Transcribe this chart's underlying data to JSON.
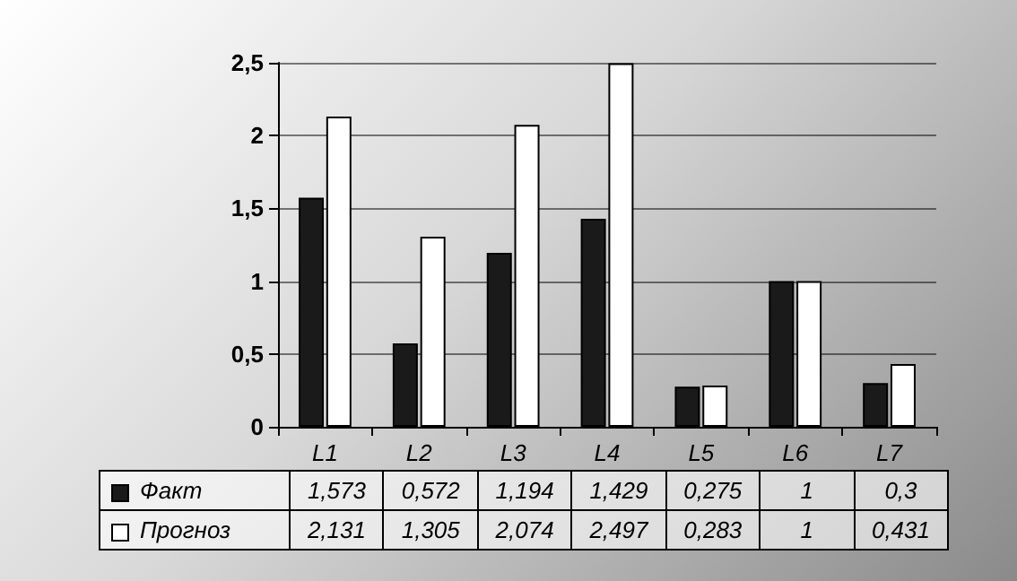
{
  "chart_data": {
    "type": "bar",
    "categories": [
      "L1",
      "L2",
      "L3",
      "L4",
      "L5",
      "L6",
      "L7"
    ],
    "series": [
      {
        "name": "Факт",
        "color": "#1a1a1a",
        "values": [
          1.573,
          0.572,
          1.194,
          1.429,
          0.275,
          1,
          0.3
        ],
        "value_labels": [
          "1,573",
          "0,572",
          "1,194",
          "1,429",
          "0,275",
          "1",
          "0,3"
        ]
      },
      {
        "name": "Прогноз",
        "color": "#ffffff",
        "values": [
          2.131,
          1.305,
          2.074,
          2.497,
          0.283,
          1,
          0.431
        ],
        "value_labels": [
          "2,131",
          "1,305",
          "2,074",
          "2,497",
          "0,283",
          "1",
          "0,431"
        ]
      }
    ],
    "ylim": [
      0,
      2.5
    ],
    "yticks": [
      0,
      {
        "value": 0.5,
        "label": "0,5"
      },
      1,
      {
        "value": 1.5,
        "label": "1,5"
      },
      2,
      {
        "value": 2.5,
        "label": "2,5"
      }
    ],
    "grid": "y",
    "legend": "bottom"
  }
}
